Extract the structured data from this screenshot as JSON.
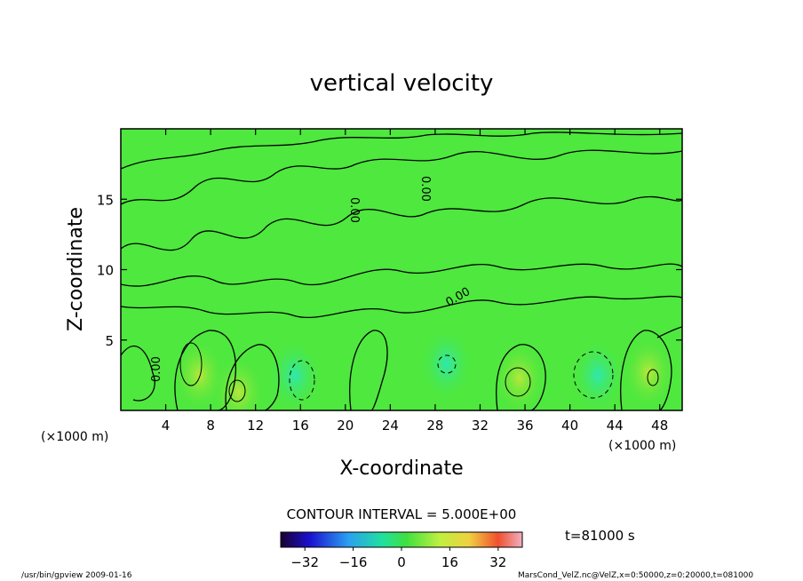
{
  "chart_data": {
    "type": "heatmap",
    "title": "vertical velocity",
    "xlabel": "X-coordinate",
    "ylabel": "Z-coordinate",
    "x_unit": "(×1000 m)",
    "xlim": [
      0,
      50
    ],
    "ylim": [
      0,
      20
    ],
    "x_ticks": [
      4,
      8,
      12,
      16,
      20,
      24,
      28,
      32,
      36,
      40,
      44,
      48
    ],
    "y_ticks": [
      5,
      10,
      15
    ],
    "contour_interval_text": "CONTOUR INTERVAL = 5.000E+00",
    "contour_label": "0.00",
    "colorbar": {
      "range": [
        -40,
        40
      ],
      "ticks": [
        -32,
        -16,
        0,
        16,
        32
      ]
    },
    "time_label": "t=81000 s",
    "field_features": [
      {
        "x": 7,
        "z": 2.5,
        "sign": "positive"
      },
      {
        "x": 10.5,
        "z": 1.3,
        "sign": "positive"
      },
      {
        "x": 15.5,
        "z": 2.5,
        "sign": "negative"
      },
      {
        "x": 29,
        "z": 3.3,
        "sign": "negative"
      },
      {
        "x": 35.5,
        "z": 2.3,
        "sign": "positive"
      },
      {
        "x": 42.5,
        "z": 2.5,
        "sign": "negative"
      },
      {
        "x": 47,
        "z": 2.7,
        "sign": "positive"
      }
    ]
  },
  "footer": {
    "left": "/usr/bin/gpview   2009-01-16",
    "right": "MarsCond_VelZ.nc@VelZ,x=0:50000,z=0:20000,t=081000"
  }
}
